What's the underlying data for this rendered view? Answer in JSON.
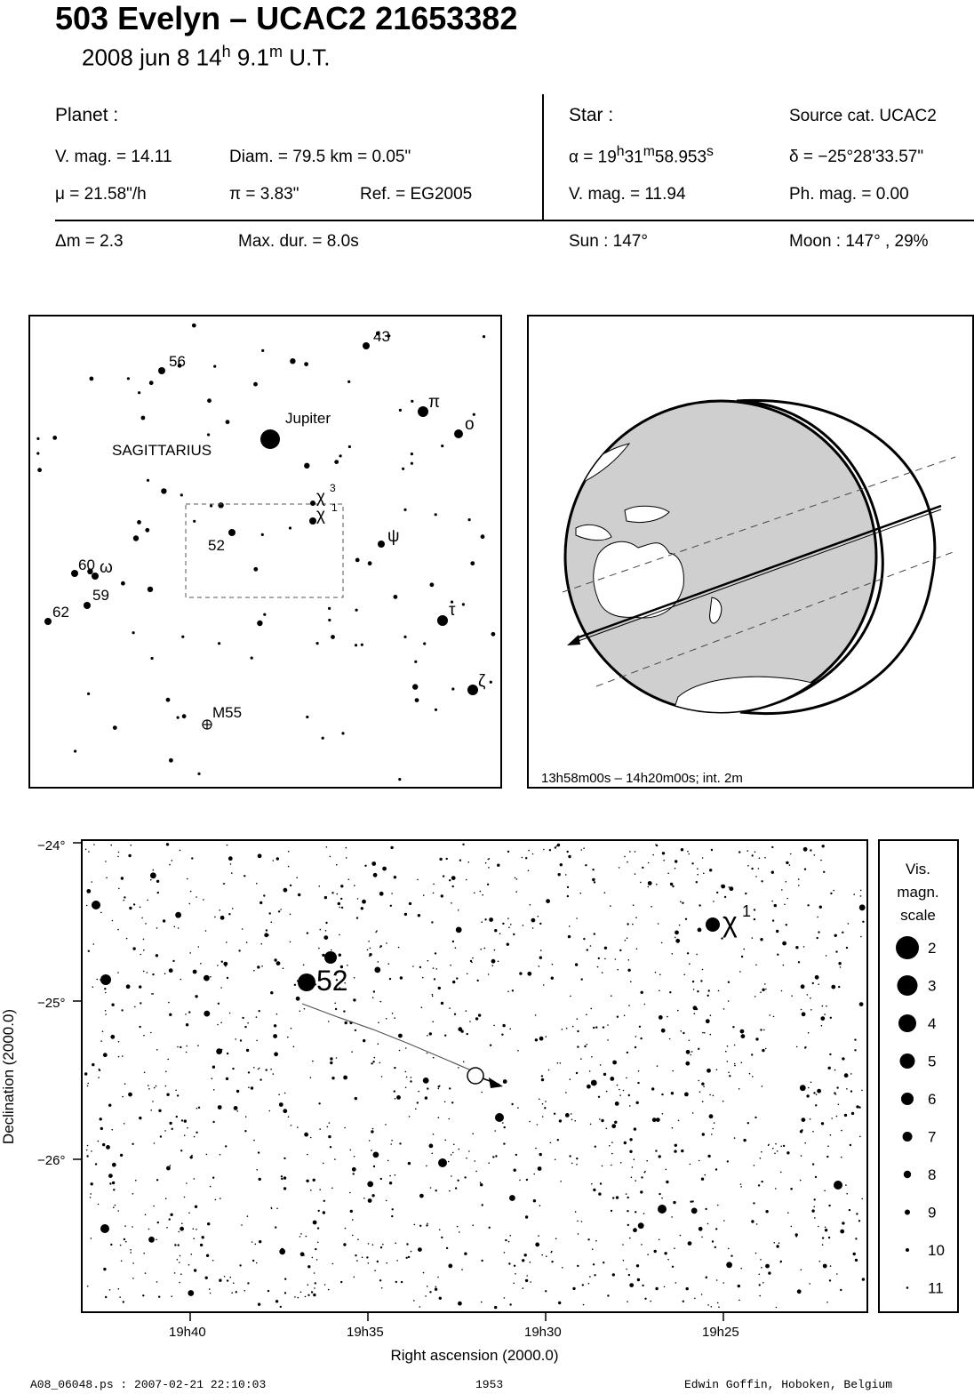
{
  "header": {
    "title": "503 Evelyn  –  UCAC2 21653382",
    "date": "2008 jun  8  14",
    "hour_unit": "h",
    "minute": " 9.1",
    "minute_unit": "m",
    "time_suffix": " U.T."
  },
  "planet": {
    "heading": "Planet :",
    "vmag": "V. mag. = 14.11",
    "diam": "Diam. = 79.5 km = 0.05\"",
    "mu": "μ =  21.58\"/h",
    "pi": "π =  3.83\"",
    "ref": "Ref. = EG2005"
  },
  "star": {
    "heading": "Star :",
    "source": "Source cat.  UCAC2",
    "alpha_prefix": "α = 19",
    "alpha_h": "h",
    "alpha_m_val": "31",
    "alpha_m": "m",
    "alpha_s_val": "58.953",
    "alpha_s": "s",
    "delta": "δ = −25°28'33.57\"",
    "vmag": "V. mag. = 11.94",
    "phmag": "Ph. mag. =  0.00"
  },
  "event": {
    "dm": "Δm = 2.3",
    "maxdur": "Max. dur. = 8.0s",
    "sun": "Sun : 147°",
    "moon": "Moon : 147° , 29%"
  },
  "finder": {
    "constellation": "SAGITTARIUS",
    "labels": [
      "43",
      "56",
      "π",
      "o",
      "Jupiter",
      "χ",
      "3",
      "χ",
      "1",
      "52",
      "ψ",
      "60",
      "ω",
      "59",
      "62",
      "τ",
      "ζ",
      "M55"
    ]
  },
  "globe": {
    "caption": "13h58m00s – 14h20m00s; int.  2m"
  },
  "chart_data": {
    "type": "scatter",
    "title": "",
    "xlabel": "Right ascension (2000.0)",
    "ylabel": "Declination (2000.0)",
    "x_ticks": [
      "19h40",
      "19h35",
      "19h30",
      "19h25"
    ],
    "y_ticks": [
      "−24°",
      "−25°",
      "−26°"
    ],
    "labeled_stars": [
      {
        "name": "52",
        "ra": "19h36.7m",
        "dec": -24.88
      },
      {
        "name": "χ",
        "superscript": "1",
        "ra": "19h25.3m",
        "dec": -24.5
      }
    ],
    "legend": {
      "title_lines": [
        "Vis.",
        "magn.",
        "scale"
      ],
      "magnitudes": [
        "2",
        "3",
        "4",
        "5",
        "6",
        "7",
        "8",
        "9",
        "10",
        "11"
      ]
    }
  },
  "footer": {
    "file": "A08_06048.ps : 2007-02-21 22:10:03",
    "number": "1953",
    "author": "Edwin Goffin, Hoboken, Belgium"
  }
}
